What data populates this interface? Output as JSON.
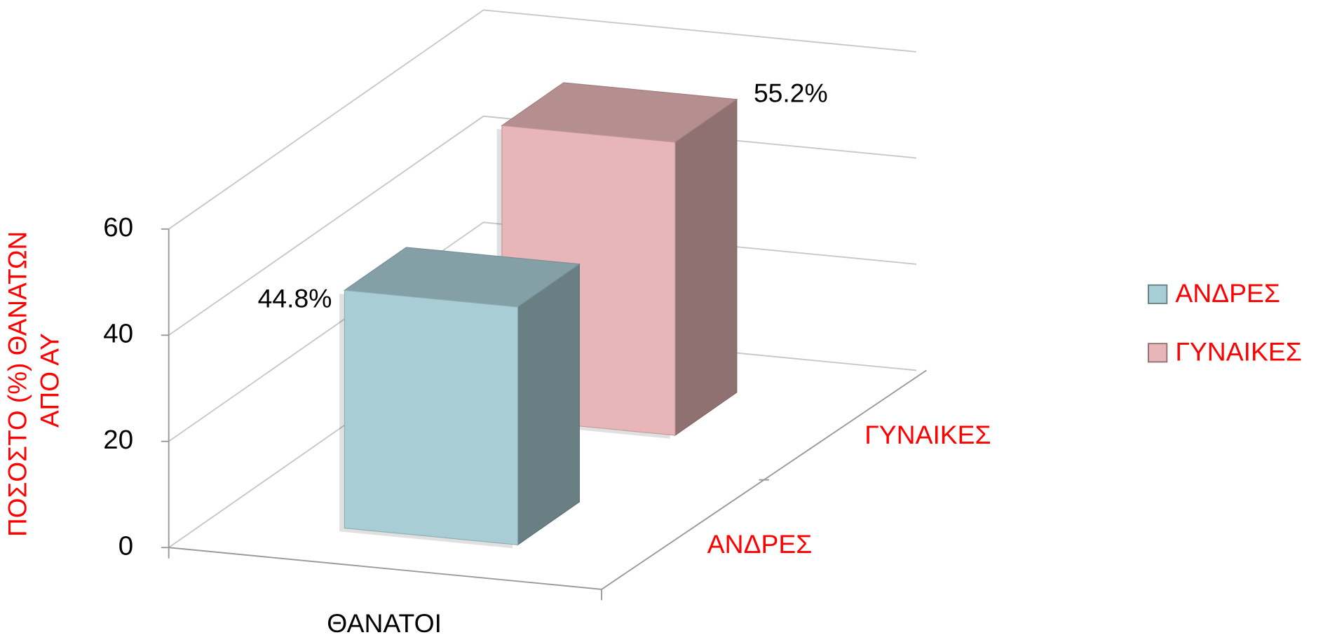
{
  "chart_data": {
    "type": "bar3d",
    "y_label": [
      "ΠΟΣΟΣΤΟ (%) ΘΑΝΑΤΩΝ",
      "ΑΠΟ ΑΥ"
    ],
    "categories": [
      "ΘΑΝΑΤΟΙ"
    ],
    "series": [
      {
        "name": "ΑΝΔΡΕΣ",
        "color": "#a9cdd5",
        "values": [
          44.8
        ],
        "value_labels": [
          "44.8%"
        ]
      },
      {
        "name": "ΓΥΝΑΙΚΕΣ",
        "color": "#e8b6b8",
        "values": [
          55.2
        ],
        "value_labels": [
          "55.2%"
        ]
      }
    ],
    "ylim": [
      0,
      60
    ],
    "yticks": [
      0,
      20,
      40,
      60
    ],
    "grid": true,
    "legend": "right"
  }
}
